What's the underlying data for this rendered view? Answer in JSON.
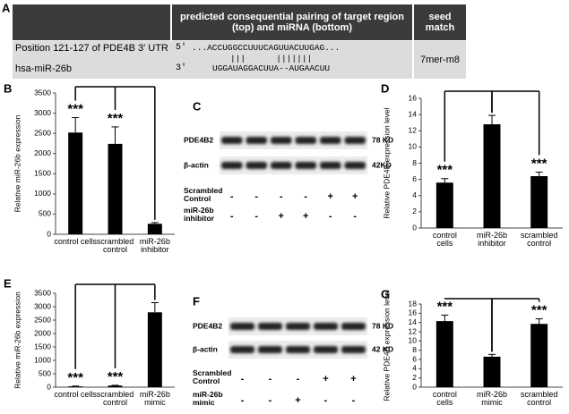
{
  "panel_labels": [
    "A",
    "B",
    "C",
    "D",
    "E",
    "F",
    "G"
  ],
  "table": {
    "headers": [
      "predicted consequential pairing of target region\n(top) and miRNA (bottom)",
      "seed\nmatch"
    ],
    "target": {
      "name": "Position 121-127 of PDE4B 3' UTR",
      "end": "5'",
      "sequence": "...ACCUGGCCUUUCAGUUACUUGAG..."
    },
    "pairing": "|||      |||||||",
    "mirna": {
      "name": "hsa-miR-26b",
      "end": "3'",
      "sequence": "UGGAUAGGACUUA--AUGAACUU"
    },
    "seed": "7mer-m8"
  },
  "blots": [
    {
      "rows": [
        {
          "label": "PDE4B2",
          "size": "78 KD"
        },
        {
          "label": "β-actin",
          "size": "42KD"
        }
      ],
      "treatments": [
        {
          "label": "Scrambled\nControl",
          "signs": [
            "-",
            "-",
            "-",
            "-",
            "+",
            "+"
          ]
        },
        {
          "label": "miR-26b\ninhibitor",
          "signs": [
            "-",
            "-",
            "+",
            "+",
            "-",
            "-"
          ]
        }
      ]
    },
    {
      "rows": [
        {
          "label": "PDE4B2",
          "size": "78 KD"
        },
        {
          "label": "β-actin",
          "size": "42 KD"
        }
      ],
      "treatments": [
        {
          "label": "Scrambled\nControl",
          "signs": [
            "-",
            "-",
            "-",
            "+",
            "+"
          ]
        },
        {
          "label": "miR-26b\nmimic",
          "signs": [
            "-",
            "-",
            "+",
            "-",
            "-"
          ]
        }
      ]
    }
  ],
  "chart_data": [
    {
      "type": "bar",
      "y_label": "Relative miR-26b expression",
      "color": "#000000",
      "categories": [
        "control cells",
        "scrambled\ncontrol",
        "miR-26b\ninhibitor"
      ],
      "values": [
        2520,
        2240,
        260
      ],
      "errors": [
        370,
        420,
        30
      ],
      "significance": [
        "***",
        "***",
        null
      ],
      "ylim": [
        0,
        3500
      ],
      "yticks": [
        0,
        500,
        1000,
        1500,
        2000,
        2500,
        3000,
        3500
      ]
    },
    {
      "type": "bar",
      "y_label": "Relative PDE4B expression level",
      "color": "#000000",
      "categories": [
        "control\ncells",
        "miR-26b\ninhibitor",
        "scrambled\ncontrol"
      ],
      "values": [
        5.6,
        12.8,
        6.4
      ],
      "errors": [
        0.5,
        1.1,
        0.5
      ],
      "significance": [
        "***",
        null,
        "***"
      ],
      "ylim": [
        0,
        16
      ],
      "yticks": [
        0,
        2,
        4,
        6,
        8,
        10,
        12,
        14,
        16
      ]
    },
    {
      "type": "bar",
      "y_label": "Relative miR-26b expression",
      "color": "#000000",
      "categories": [
        "control cells",
        "scrambled\ncontrol",
        "miR-26b\nmimic"
      ],
      "values": [
        30,
        60,
        2790
      ],
      "errors": [
        10,
        10,
        360
      ],
      "significance": [
        "***",
        "***",
        null
      ],
      "ylim": [
        0,
        3500
      ],
      "yticks": [
        0,
        500,
        1000,
        1500,
        2000,
        2500,
        3000,
        3500
      ]
    },
    {
      "type": "bar",
      "y_label": "Relative PDE4B expression level",
      "color": "#000000",
      "categories": [
        "control\ncells",
        "miR-26b\nmimic",
        "scrambled\ncontrol"
      ],
      "values": [
        14.3,
        6.6,
        13.7
      ],
      "errors": [
        1.3,
        0.5,
        1.1
      ],
      "significance": [
        "***",
        null,
        "***"
      ],
      "ylim": [
        0,
        18
      ],
      "yticks": [
        0,
        2,
        4,
        6,
        8,
        10,
        12,
        14,
        16,
        18
      ]
    }
  ]
}
